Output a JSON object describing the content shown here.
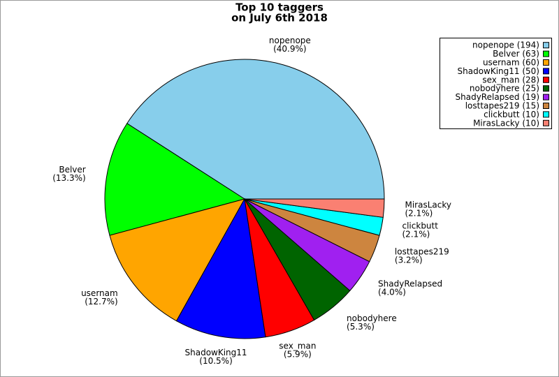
{
  "chart_data": {
    "type": "pie",
    "title": "Top 10 taggers",
    "subtitle": "on July 6th 2018",
    "categories": [
      "nopenope",
      "Belver",
      "usernam",
      "ShadowKing11",
      "sex_man",
      "nobodyhere",
      "ShadyRelapsed",
      "losttapes219",
      "clickbutt",
      "MirasLacky"
    ],
    "values": [
      40.9,
      13.3,
      12.7,
      10.5,
      5.9,
      5.3,
      4.0,
      3.2,
      2.1,
      2.1
    ],
    "value_labels": [
      "(40.9%)",
      "(13.3%)",
      "(12.7%)",
      "(10.5%)",
      "(5.9%)",
      "(5.3%)",
      "(4.0%)",
      "(3.2%)",
      "(2.1%)",
      "(2.1%)"
    ],
    "legend_labels": [
      "nopenope (194)",
      "Belver (63)",
      "usernam (60)",
      "ShadowKing11 (50)",
      "sex_man (28)",
      "nobodyhere (25)",
      "ShadyRelapsed (19)",
      "losttapes219 (15)",
      "clickbutt (10)",
      "MirasLacky (10)"
    ],
    "colors": [
      "#87ceeb",
      "#00ff00",
      "#ffa500",
      "#0000ff",
      "#ff0000",
      "#006400",
      "#a020f0",
      "#cd853f",
      "#00ffff",
      "#fa8072"
    ],
    "legend": "upper-right"
  }
}
